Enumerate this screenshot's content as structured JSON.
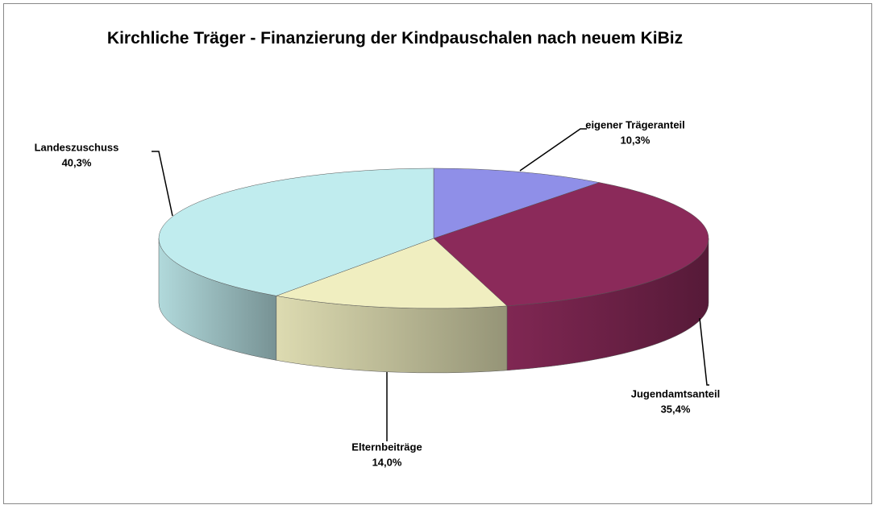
{
  "chart_data": {
    "type": "pie",
    "title": "Kirchliche Träger - Finanzierung der Kindpauschalen nach neuem KiBiz",
    "categories": [
      "eigener  Trägeranteil",
      "Jugendamtsanteil",
      "Elternbeiträge",
      "Landeszuschuss"
    ],
    "values": [
      10.3,
      35.4,
      14.0,
      40.3
    ],
    "value_labels": [
      "10,3%",
      "35,4%",
      "14,0%",
      "40,3%"
    ],
    "colors": [
      "#8f8fe8",
      "#8b2a5a",
      "#f0eec0",
      "#c0ecee"
    ]
  }
}
